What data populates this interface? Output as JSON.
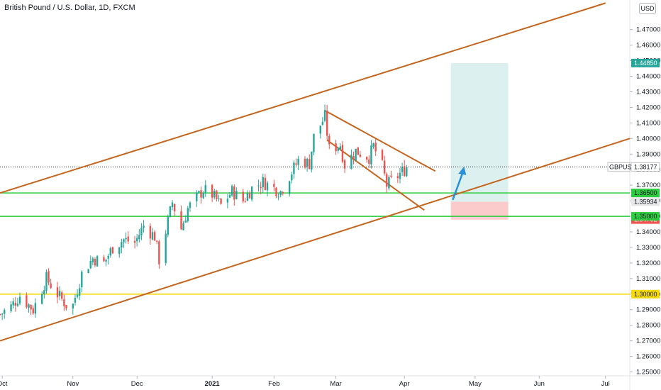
{
  "header": {
    "title": "British Pound / U.S. Dollar, 1D, FXCM",
    "currency": "USD"
  },
  "symbol_label": "GBPUSD",
  "chart_data": {
    "type": "candlestick",
    "title": "British Pound / U.S. Dollar, 1D, FXCM",
    "y_axis": {
      "range": [
        1.2475,
        1.489
      ],
      "ticks": [
        "1.47000",
        "1.46000",
        "1.45000",
        "1.44000",
        "1.43000",
        "1.42000",
        "1.41000",
        "1.40000",
        "1.39000",
        "1.38000",
        "1.37000",
        "1.36000",
        "1.35000",
        "1.34000",
        "1.33000",
        "1.32000",
        "1.31000",
        "1.30000",
        "1.29000",
        "1.28000",
        "1.27000",
        "1.26000",
        "1.25000"
      ]
    },
    "x_axis": {
      "range": [
        "2020-09-30",
        "2021-07-12"
      ],
      "ticks": [
        {
          "label": "Oct",
          "date": "2020-10-01"
        },
        {
          "label": "Nov",
          "date": "2020-11-02"
        },
        {
          "label": "Dec",
          "date": "2020-12-01"
        },
        {
          "label": "2021",
          "date": "2021-01-04"
        },
        {
          "label": "Feb",
          "date": "2021-02-01"
        },
        {
          "label": "Mar",
          "date": "2021-03-01"
        },
        {
          "label": "Apr",
          "date": "2021-04-01"
        },
        {
          "label": "May",
          "date": "2021-05-03"
        },
        {
          "label": "Jun",
          "date": "2021-06-01"
        },
        {
          "label": "Jul",
          "date": "2021-07-01"
        }
      ]
    },
    "price_path": [
      {
        "date": "2020-09-30",
        "close": 1.287
      },
      {
        "date": "2020-10-05",
        "close": 1.292
      },
      {
        "date": "2020-10-09",
        "close": 1.299
      },
      {
        "date": "2020-10-15",
        "close": 1.29
      },
      {
        "date": "2020-10-21",
        "close": 1.31
      },
      {
        "date": "2020-10-26",
        "close": 1.3
      },
      {
        "date": "2020-10-30",
        "close": 1.293
      },
      {
        "date": "2020-11-02",
        "close": 1.293
      },
      {
        "date": "2020-11-06",
        "close": 1.313
      },
      {
        "date": "2020-11-11",
        "close": 1.323
      },
      {
        "date": "2020-11-16",
        "close": 1.32
      },
      {
        "date": "2020-11-20",
        "close": 1.33
      },
      {
        "date": "2020-11-25",
        "close": 1.335
      },
      {
        "date": "2020-11-30",
        "close": 1.333
      },
      {
        "date": "2020-12-04",
        "close": 1.344
      },
      {
        "date": "2020-12-09",
        "close": 1.337
      },
      {
        "date": "2020-12-11",
        "close": 1.322
      },
      {
        "date": "2020-12-17",
        "close": 1.359
      },
      {
        "date": "2020-12-21",
        "close": 1.342
      },
      {
        "date": "2020-12-24",
        "close": 1.355
      },
      {
        "date": "2020-12-31",
        "close": 1.367
      },
      {
        "date": "2021-01-04",
        "close": 1.364
      },
      {
        "date": "2021-01-08",
        "close": 1.357
      },
      {
        "date": "2021-01-13",
        "close": 1.366
      },
      {
        "date": "2021-01-18",
        "close": 1.36
      },
      {
        "date": "2021-01-22",
        "close": 1.368
      },
      {
        "date": "2021-01-27",
        "close": 1.372
      },
      {
        "date": "2021-02-01",
        "close": 1.368
      },
      {
        "date": "2021-02-04",
        "close": 1.366
      },
      {
        "date": "2021-02-08",
        "close": 1.376
      },
      {
        "date": "2021-02-12",
        "close": 1.386
      },
      {
        "date": "2021-02-17",
        "close": 1.384
      },
      {
        "date": "2021-02-19",
        "close": 1.401
      },
      {
        "date": "2021-02-24",
        "close": 1.414
      },
      {
        "date": "2021-02-26",
        "close": 1.393
      },
      {
        "date": "2021-03-03",
        "close": 1.396
      },
      {
        "date": "2021-03-05",
        "close": 1.383
      },
      {
        "date": "2021-03-10",
        "close": 1.392
      },
      {
        "date": "2021-03-16",
        "close": 1.388
      },
      {
        "date": "2021-03-18",
        "close": 1.395
      },
      {
        "date": "2021-03-22",
        "close": 1.382
      },
      {
        "date": "2021-03-24",
        "close": 1.37
      },
      {
        "date": "2021-03-29",
        "close": 1.376
      },
      {
        "date": "2021-04-01",
        "close": 1.38
      },
      {
        "date": "2021-04-02",
        "close": 1.3817
      }
    ],
    "horizontal_levels": [
      {
        "price": 1.365,
        "label": "1.36500",
        "color": "#2ecc40"
      },
      {
        "price": 1.35,
        "label": "1.35000",
        "color": "#2ecc40"
      },
      {
        "price": 1.3,
        "label": "1.30000",
        "color": "#f5d90a"
      }
    ],
    "price_labels": [
      {
        "price": 1.4485,
        "label": "1.44850",
        "bg": "#26a69a",
        "fg": "#ffffff"
      },
      {
        "price": 1.38177,
        "label": "1.38177",
        "bg": "#ffffff",
        "fg": "#131722",
        "with_symbol": true
      },
      {
        "price": 1.35934,
        "label": "1.35934",
        "bg": "#e8e8e8",
        "fg": "#131722"
      },
      {
        "price": 1.34792,
        "label": "1.34792",
        "bg": "#ef5350",
        "fg": "#ffffff"
      }
    ],
    "trend_lines": [
      {
        "role": "channel-upper",
        "from": {
          "date": "2020-09-30",
          "price": 1.365
        },
        "to": {
          "date": "2021-07-01",
          "price": 1.487
        }
      },
      {
        "role": "channel-lower",
        "from": {
          "date": "2020-09-30",
          "price": 1.27
        },
        "to": {
          "date": "2021-07-12",
          "price": 1.4
        }
      },
      {
        "role": "wedge-upper",
        "from": {
          "date": "2021-02-24",
          "price": 1.418
        },
        "to": {
          "date": "2021-04-15",
          "price": 1.379
        }
      },
      {
        "role": "wedge-lower",
        "from": {
          "date": "2021-02-25",
          "price": 1.399
        },
        "to": {
          "date": "2021-04-10",
          "price": 1.354
        }
      }
    ],
    "position": {
      "type": "long",
      "start": "2021-04-22",
      "end": "2021-05-18",
      "entry": 1.35934,
      "target": 1.4485,
      "stop": 1.34792
    },
    "arrow": {
      "from": {
        "date": "2021-04-23",
        "price": 1.361
      },
      "to": {
        "date": "2021-04-28",
        "price": 1.382
      }
    },
    "colors": {
      "up": "#26a69a",
      "down": "#ef5350",
      "trend": "#c4661f",
      "arrow": "#2a8fd6"
    }
  }
}
